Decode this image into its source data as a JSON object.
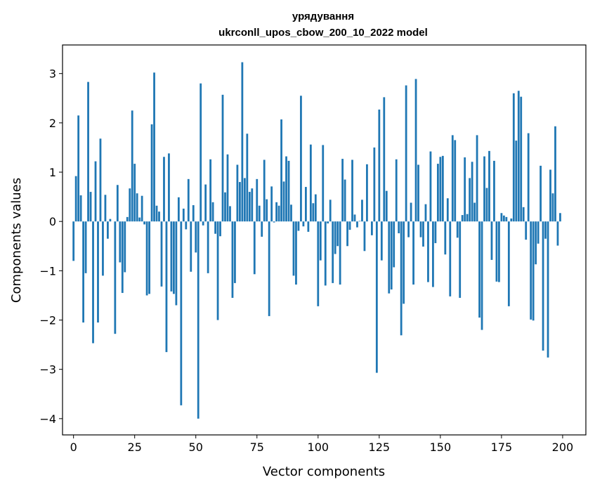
{
  "chart_data": {
    "type": "bar",
    "title": "урядування",
    "subtitle": "ukrconll_upos_cbow_200_10_2022 model",
    "xlabel": "Vector components",
    "ylabel": "Components values",
    "xlim": [
      -4.5,
      209.5
    ],
    "ylim": [
      -4.33,
      3.58
    ],
    "xticks": [
      0,
      25,
      50,
      75,
      100,
      125,
      150,
      175,
      200
    ],
    "yticks": [
      3,
      2,
      1,
      0,
      -1,
      -2,
      -3,
      -4
    ],
    "ytick_labels": [
      "3",
      "2",
      "1",
      "0",
      "−1",
      "−2",
      "−3",
      "−4"
    ],
    "bar_color": "#1f77b4",
    "grid": false,
    "categories_note": "component index 0..199",
    "values": [
      -0.8,
      0.92,
      2.15,
      0.53,
      -2.05,
      -1.05,
      2.83,
      0.6,
      -2.47,
      1.22,
      -2.05,
      1.68,
      -1.1,
      0.54,
      -0.35,
      0.05,
      0.0,
      -2.28,
      0.74,
      -0.83,
      -1.45,
      -1.03,
      0.09,
      0.67,
      2.25,
      1.17,
      0.57,
      0.08,
      0.52,
      -0.06,
      -1.5,
      -1.47,
      1.97,
      3.02,
      0.32,
      0.2,
      -1.32,
      1.31,
      -2.65,
      1.38,
      -1.42,
      -1.47,
      -1.7,
      0.49,
      -3.73,
      0.26,
      -0.16,
      0.86,
      -1.02,
      0.33,
      -0.63,
      -4.0,
      2.8,
      -0.08,
      0.75,
      -1.05,
      1.26,
      0.39,
      -0.25,
      -2.0,
      -0.3,
      2.57,
      0.59,
      1.36,
      0.31,
      -1.55,
      -1.25,
      1.15,
      0.8,
      3.23,
      0.88,
      1.78,
      0.6,
      0.67,
      -1.07,
      0.86,
      0.32,
      -0.31,
      1.25,
      0.45,
      -1.92,
      0.71,
      -0.02,
      0.39,
      0.32,
      2.07,
      0.81,
      1.32,
      1.23,
      0.34,
      -1.1,
      -1.28,
      -0.19,
      2.55,
      -0.1,
      0.7,
      -0.21,
      1.56,
      0.37,
      0.55,
      -1.72,
      -0.79,
      1.55,
      -1.3,
      -0.04,
      0.44,
      -1.25,
      -0.66,
      -0.5,
      -1.28,
      1.27,
      0.85,
      -0.5,
      -0.17,
      1.25,
      0.14,
      -0.12,
      0.01,
      0.44,
      -0.6,
      1.16,
      0.0,
      -0.28,
      1.5,
      -3.07,
      2.27,
      -0.79,
      2.52,
      0.62,
      -1.46,
      -1.38,
      -0.93,
      1.26,
      -0.24,
      -2.31,
      -1.67,
      2.76,
      -0.32,
      0.38,
      -1.28,
      2.89,
      1.15,
      -0.32,
      -0.51,
      0.35,
      -1.23,
      1.42,
      -1.33,
      -0.44,
      1.17,
      1.31,
      1.33,
      -0.67,
      0.47,
      -1.52,
      1.75,
      1.65,
      -0.33,
      -1.55,
      0.13,
      1.3,
      0.15,
      0.88,
      1.21,
      0.38,
      1.75,
      -1.95,
      -2.2,
      1.32,
      0.68,
      1.43,
      -0.78,
      1.23,
      -1.22,
      -1.23,
      0.17,
      0.12,
      0.09,
      -1.72,
      0.06,
      2.6,
      1.64,
      2.65,
      2.53,
      0.29,
      -0.37,
      1.79,
      -1.99,
      -2.01,
      -0.87,
      -0.45,
      1.13,
      -2.62,
      -0.35,
      -2.76,
      1.05,
      0.57,
      1.93,
      -0.49,
      0.17
    ]
  }
}
